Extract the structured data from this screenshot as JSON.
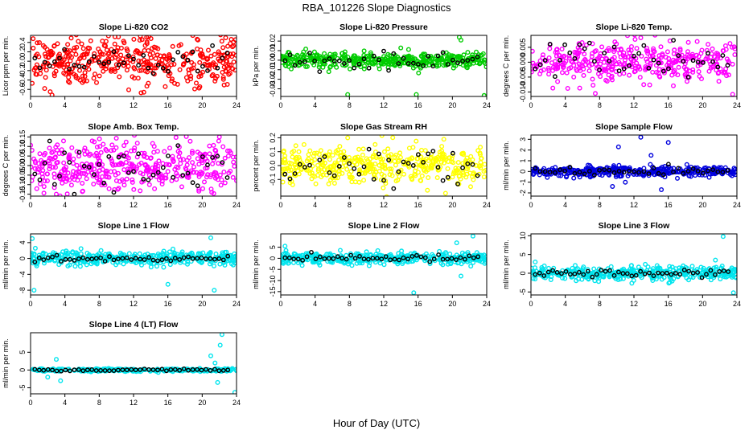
{
  "figure": {
    "title": "RBA_101226  Slope Diagnostics",
    "xlabel": "Hour of Day (UTC)"
  },
  "colors": {
    "overlay": "#000000",
    "red": "#ff0000",
    "green": "#00cc00",
    "magenta": "#ff00ff",
    "yellow": "#ffff00",
    "blue": "#0000dd",
    "cyan": "#00e5ee"
  },
  "chart_data": [
    {
      "type": "scatter",
      "title": "Slope Li-820 CO2",
      "ylabel": "Licor ppm per min.",
      "color": "#ff0000",
      "xlim": [
        0,
        24
      ],
      "xticks": [
        0,
        4,
        8,
        12,
        16,
        20,
        24
      ],
      "ylim": [
        -0.75,
        0.55
      ],
      "yticks": [
        -0.6,
        -0.4,
        -0.2,
        0.0,
        0.2,
        0.4
      ],
      "ytick_labels": [
        "-0.6",
        "-0.4",
        "-0.2",
        "0.0",
        "0.2",
        "0.4"
      ],
      "main_count": 420,
      "main_spread": 0.26,
      "overlay_count": 40,
      "overlay_spread": 0.16,
      "outliers": [
        {
          "x": 2.5,
          "y": -0.72
        },
        {
          "x": 13.2,
          "y": -0.66
        },
        {
          "x": 0.3,
          "y": 0.48
        },
        {
          "x": 13.0,
          "y": 0.46
        },
        {
          "x": 19.5,
          "y": 0.45
        }
      ]
    },
    {
      "type": "scatter",
      "title": "Slope Li-820 Pressure",
      "ylabel": "kPa per min.",
      "color": "#00cc00",
      "xlim": [
        0,
        24
      ],
      "xticks": [
        0,
        4,
        8,
        12,
        16,
        20,
        24
      ],
      "ylim": [
        -0.038,
        0.026
      ],
      "yticks": [
        -0.03,
        -0.02,
        -0.01,
        0.0,
        0.01,
        0.02
      ],
      "ytick_labels": [
        "-0.03",
        "-0.02",
        "-0.01",
        "0.00",
        "0.01",
        "0.02"
      ],
      "main_count": 420,
      "main_spread": 0.004,
      "overlay_count": 40,
      "overlay_spread": 0.005,
      "outliers": [
        {
          "x": 7.8,
          "y": -0.036
        },
        {
          "x": 15.8,
          "y": -0.036
        },
        {
          "x": 23.7,
          "y": -0.037
        },
        {
          "x": 20.8,
          "y": 0.024
        },
        {
          "x": 21.0,
          "y": 0.021
        },
        {
          "x": 5.6,
          "y": -0.012
        }
      ]
    },
    {
      "type": "scatter",
      "title": "Slope Li-820 Temp.",
      "ylabel": "degrees C per min.",
      "color": "#ff00ff",
      "xlim": [
        0,
        24
      ],
      "xticks": [
        0,
        4,
        8,
        12,
        16,
        20,
        24
      ],
      "ylim": [
        -0.0115,
        0.009
      ],
      "yticks": [
        -0.01,
        -0.005,
        0.0,
        0.005
      ],
      "ytick_labels": [
        "-0.010",
        "-0.005",
        "0.000",
        "0.005"
      ],
      "main_count": 380,
      "main_spread": 0.0035,
      "overlay_count": 40,
      "overlay_spread": 0.003,
      "outliers": [
        {
          "x": 12.8,
          "y": 0.0082
        },
        {
          "x": 7.5,
          "y": -0.0105
        },
        {
          "x": 23.5,
          "y": -0.0108
        }
      ]
    },
    {
      "type": "scatter",
      "title": "Slope Amb. Box Temp.",
      "ylabel": "degrees C per min.",
      "color": "#ff00ff",
      "xlim": [
        0,
        24
      ],
      "xticks": [
        0,
        4,
        8,
        12,
        16,
        20,
        24
      ],
      "ylim": [
        -0.16,
        0.16
      ],
      "yticks": [
        -0.15,
        -0.1,
        -0.05,
        0.0,
        0.05,
        0.1,
        0.15
      ],
      "ytick_labels": [
        "-0.15",
        "-0.10",
        "-0.05",
        "0.00",
        "0.05",
        "0.10",
        "0.15"
      ],
      "main_count": 420,
      "main_spread": 0.065,
      "overlay_count": 40,
      "overlay_spread": 0.06,
      "outliers": [
        {
          "x": 3.0,
          "y": -0.15
        },
        {
          "x": 22.0,
          "y": 0.15
        }
      ]
    },
    {
      "type": "scatter",
      "title": "Slope Gas Stream RH",
      "ylabel": "percent per min.",
      "color": "#ffff00",
      "xlim": [
        0,
        24
      ],
      "xticks": [
        0,
        4,
        8,
        12,
        16,
        20,
        24
      ],
      "ylim": [
        -0.22,
        0.22
      ],
      "yticks": [
        -0.1,
        0.0,
        0.1,
        0.2
      ],
      "ytick_labels": [
        "-0.1",
        "0.0",
        "0.1",
        "0.2"
      ],
      "main_count": 420,
      "main_spread": 0.07,
      "overlay_count": 40,
      "overlay_spread": 0.07,
      "outliers": [
        {
          "x": 7.8,
          "y": 0.2
        },
        {
          "x": 19.0,
          "y": 0.19
        },
        {
          "x": 19.2,
          "y": -0.2
        }
      ]
    },
    {
      "type": "scatter",
      "title": "Slope Sample Flow",
      "ylabel": "ml/min per min.",
      "color": "#0000dd",
      "xlim": [
        0,
        24
      ],
      "xticks": [
        0,
        4,
        8,
        12,
        16,
        20,
        24
      ],
      "ylim": [
        -2.3,
        3.4
      ],
      "yticks": [
        -2,
        -1,
        0,
        1,
        2,
        3
      ],
      "ytick_labels": [
        "-2",
        "-1",
        "0",
        "1",
        "2",
        "3"
      ],
      "main_count": 380,
      "main_spread": 0.22,
      "overlay_count": 40,
      "overlay_spread": 0.2,
      "outliers": [
        {
          "x": 10.2,
          "y": 2.3
        },
        {
          "x": 12.8,
          "y": 3.2
        },
        {
          "x": 16.0,
          "y": 2.7
        },
        {
          "x": 9.5,
          "y": -1.4
        },
        {
          "x": 15.2,
          "y": -1.7
        },
        {
          "x": 11.0,
          "y": -1.0
        },
        {
          "x": 14.0,
          "y": 1.5
        }
      ]
    },
    {
      "type": "scatter",
      "title": "Slope Line 1 Flow",
      "ylabel": "ml/min per min.",
      "color": "#00e5ee",
      "xlim": [
        0,
        24
      ],
      "xticks": [
        0,
        4,
        8,
        12,
        16,
        20,
        24
      ],
      "ylim": [
        -9.2,
        6.2
      ],
      "yticks": [
        -8,
        -4,
        0,
        4
      ],
      "ytick_labels": [
        "-8",
        "-4",
        "0",
        "4"
      ],
      "main_count": 380,
      "main_spread": 0.9,
      "overlay_count": 45,
      "overlay_spread": 0.35,
      "outliers": [
        {
          "x": 0.2,
          "y": 5.0
        },
        {
          "x": 0.4,
          "y": -8.0
        },
        {
          "x": 21.0,
          "y": 5.2
        },
        {
          "x": 21.4,
          "y": -8.0
        },
        {
          "x": 16.0,
          "y": -6.5
        }
      ]
    },
    {
      "type": "scatter",
      "title": "Slope Line 2 Flow",
      "ylabel": "ml/min per min.",
      "color": "#00e5ee",
      "xlim": [
        0,
        24
      ],
      "xticks": [
        0,
        4,
        8,
        12,
        16,
        20,
        24
      ],
      "ylim": [
        -16.5,
        11
      ],
      "yticks": [
        -15,
        -10,
        -5,
        0,
        5
      ],
      "ytick_labels": [
        "-15",
        "-10",
        "-5",
        "0",
        "5"
      ],
      "main_count": 380,
      "main_spread": 1.3,
      "overlay_count": 45,
      "overlay_spread": 0.6,
      "outliers": [
        {
          "x": 15.5,
          "y": -15.5
        },
        {
          "x": 22.4,
          "y": 10.0
        },
        {
          "x": 20.5,
          "y": 7.0
        },
        {
          "x": 21.0,
          "y": -8.0
        },
        {
          "x": 0.5,
          "y": 5.5
        }
      ]
    },
    {
      "type": "scatter",
      "title": "Slope Line 3 Flow",
      "ylabel": "ml/min per min.",
      "color": "#00e5ee",
      "xlim": [
        0,
        24
      ],
      "xticks": [
        0,
        4,
        8,
        12,
        16,
        20,
        24
      ],
      "ylim": [
        -5.8,
        10.5
      ],
      "yticks": [
        -5,
        0,
        5,
        10
      ],
      "ytick_labels": [
        "-5",
        "0",
        "5",
        "10"
      ],
      "main_count": 380,
      "main_spread": 0.9,
      "overlay_count": 45,
      "overlay_spread": 0.5,
      "outliers": [
        {
          "x": 22.4,
          "y": 9.8
        },
        {
          "x": 23.6,
          "y": -5.2
        },
        {
          "x": 0.5,
          "y": 3.0
        },
        {
          "x": 21.5,
          "y": 3.5
        }
      ]
    },
    {
      "type": "scatter",
      "title": "Slope Line 4 (LT) Flow",
      "ylabel": "ml/min per min.",
      "color": "#00e5ee",
      "xlim": [
        0,
        24
      ],
      "xticks": [
        0,
        4,
        8,
        12,
        16,
        20,
        24
      ],
      "ylim": [
        -6.7,
        10.5
      ],
      "yticks": [
        -5,
        0,
        5
      ],
      "ytick_labels": [
        "-5",
        "0",
        "5"
      ],
      "main_count": 300,
      "main_spread": 0.2,
      "overlay_count": 45,
      "overlay_spread": 0.15,
      "outliers": [
        {
          "x": 22.3,
          "y": 10.0
        },
        {
          "x": 22.1,
          "y": 7.0
        },
        {
          "x": 21.0,
          "y": 4.0
        },
        {
          "x": 3.0,
          "y": 3.0
        },
        {
          "x": 3.5,
          "y": -3.0
        },
        {
          "x": 21.8,
          "y": -3.5
        },
        {
          "x": 23.8,
          "y": -6.3
        },
        {
          "x": 2.0,
          "y": -2.0
        },
        {
          "x": 21.5,
          "y": 2.0
        }
      ]
    }
  ]
}
